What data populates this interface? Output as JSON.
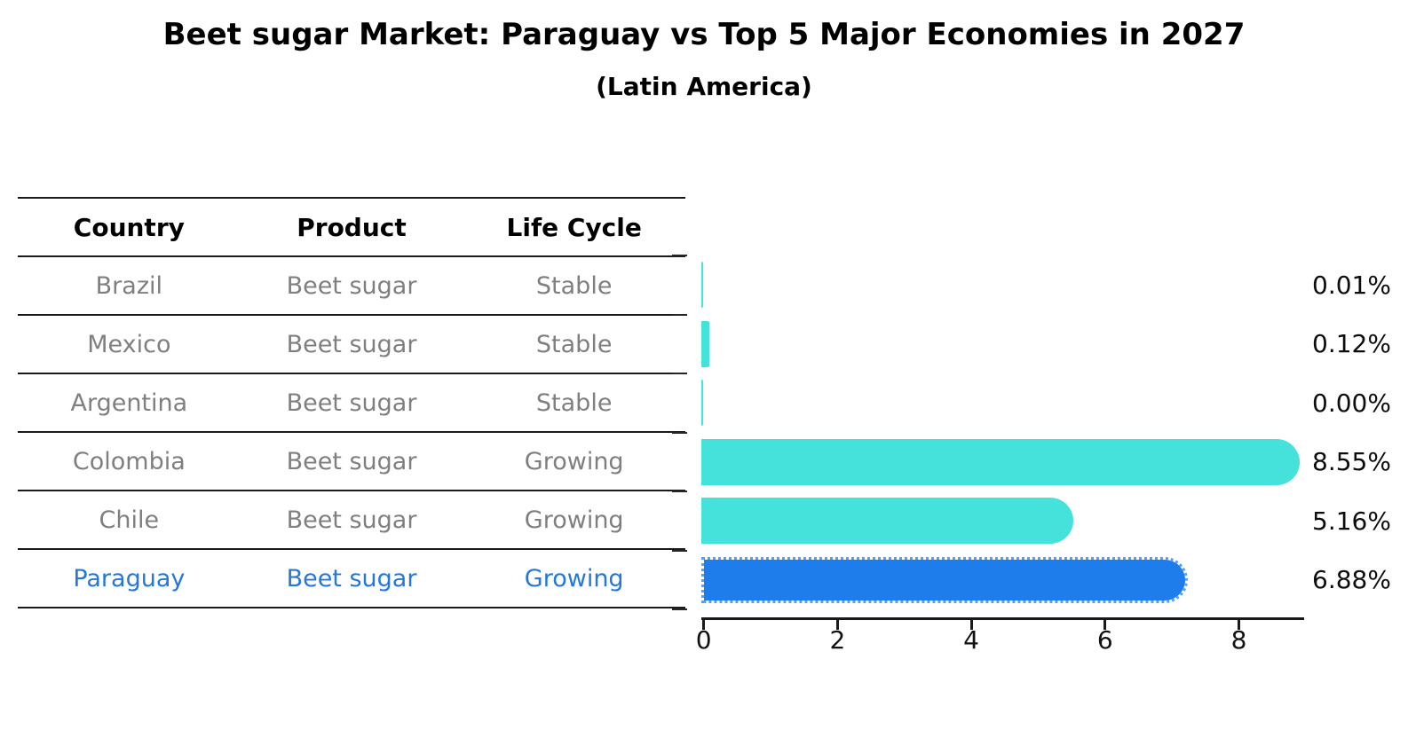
{
  "title": "Beet sugar Market: Paraguay vs Top 5 Major Economies in 2027",
  "subtitle": "(Latin America)",
  "table": {
    "headers": [
      "Country",
      "Product",
      "Life Cycle"
    ],
    "rows": [
      {
        "country": "Brazil",
        "product": "Beet sugar",
        "life_cycle": "Stable",
        "highlight": false
      },
      {
        "country": "Mexico",
        "product": "Beet sugar",
        "life_cycle": "Stable",
        "highlight": false
      },
      {
        "country": "Argentina",
        "product": "Beet sugar",
        "life_cycle": "Stable",
        "highlight": false
      },
      {
        "country": "Colombia",
        "product": "Beet sugar",
        "life_cycle": "Growing",
        "highlight": false
      },
      {
        "country": "Chile",
        "product": "Beet sugar",
        "life_cycle": "Growing",
        "highlight": false
      },
      {
        "country": "Paraguay",
        "product": "Beet sugar",
        "life_cycle": "Growing",
        "highlight": true
      }
    ]
  },
  "chart_data": {
    "type": "bar",
    "orientation": "horizontal",
    "title": "Beet sugar Market: Paraguay vs Top 5 Major Economies in 2027",
    "subtitle": "(Latin America)",
    "categories": [
      "Brazil",
      "Mexico",
      "Argentina",
      "Colombia",
      "Chile",
      "Paraguay"
    ],
    "values": [
      0.01,
      0.12,
      0.0,
      8.55,
      5.16,
      6.88
    ],
    "value_labels": [
      "0.01%",
      "0.12%",
      "0.00%",
      "8.55%",
      "5.16%",
      "6.88%"
    ],
    "xlabel": "",
    "ylabel": "",
    "xlim": [
      0,
      9
    ],
    "xticks": [
      0,
      2,
      4,
      6,
      8
    ],
    "grid": false,
    "legend": false,
    "highlight_category": "Paraguay",
    "bar_color": "#45E2DC",
    "highlight_bar_color": "#1E7DEB",
    "highlight_bar_edge_color": "#55A0F2",
    "axis_color": "#1a1a1a"
  }
}
